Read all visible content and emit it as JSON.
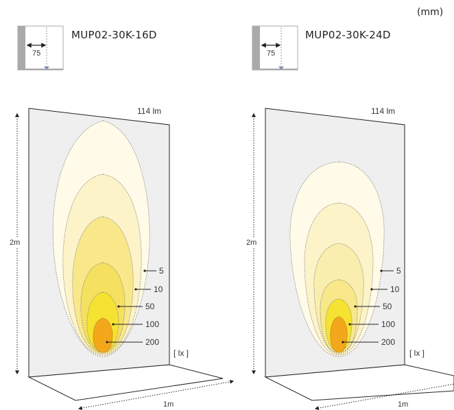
{
  "unit_label": "(mm)",
  "panels": [
    {
      "id": "16d",
      "model": "MUP02-30K-16D",
      "offset_mm": "75",
      "lumen": "114 lm",
      "height_label": "2m",
      "width_label": "1m",
      "lux_unit": "[ lx ]",
      "contours": [
        {
          "lux": "5",
          "color": "#fffbe8"
        },
        {
          "lux": "10",
          "color": "#fdf3c8"
        },
        {
          "lux": "50",
          "color": "#f9e88a"
        },
        {
          "lux": "100",
          "color": "#f6e331"
        },
        {
          "lux": "200",
          "color": "#f2a81a"
        }
      ]
    },
    {
      "id": "24d",
      "model": "MUP02-30K-24D",
      "offset_mm": "75",
      "lumen": "114 lm",
      "height_label": "2m",
      "width_label": "1m",
      "lux_unit": "[ lx ]",
      "contours": [
        {
          "lux": "5",
          "color": "#fffbe8"
        },
        {
          "lux": "10",
          "color": "#fdf3c8"
        },
        {
          "lux": "50",
          "color": "#f9e88a"
        },
        {
          "lux": "100",
          "color": "#f6e331"
        },
        {
          "lux": "200",
          "color": "#f2a81a"
        }
      ]
    }
  ]
}
